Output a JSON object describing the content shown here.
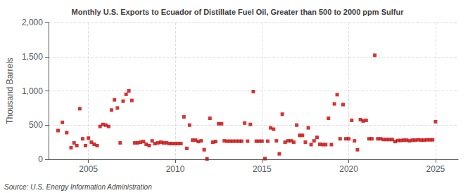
{
  "chart_data": {
    "type": "scatter",
    "title": "Monthly U.S. Exports to Ecuador of Distillate Fuel Oil, Greater than 500 to 2000 ppm Sulfur",
    "ylabel": "Thousand Barrels",
    "source": "Source: U.S. Energy Information Administration",
    "color": "#cc0000",
    "marker": "square",
    "grid": true,
    "xlim": [
      2002.7,
      2026.3
    ],
    "xticks": [
      2005,
      2010,
      2015,
      2020,
      2025
    ],
    "ylim": [
      0,
      2000
    ],
    "yticks": [
      0,
      500,
      {
        "value": 1000,
        "label": "1,000"
      },
      {
        "value": 1500,
        "label": "1,500"
      },
      {
        "value": 2000,
        "label": "2,000"
      }
    ],
    "x": [
      2003.25,
      2003.5,
      2003.75,
      2004.0,
      2004.17,
      2004.33,
      2004.5,
      2004.67,
      2004.83,
      2005.0,
      2005.17,
      2005.33,
      2005.5,
      2005.67,
      2005.83,
      2006.0,
      2006.17,
      2006.33,
      2006.5,
      2006.67,
      2006.83,
      2007.0,
      2007.17,
      2007.33,
      2007.5,
      2007.67,
      2007.83,
      2008.0,
      2008.17,
      2008.33,
      2008.5,
      2008.67,
      2008.83,
      2009.0,
      2009.17,
      2009.33,
      2009.5,
      2009.67,
      2009.83,
      2010.0,
      2010.17,
      2010.33,
      2010.5,
      2010.67,
      2010.83,
      2011.0,
      2011.17,
      2011.33,
      2011.5,
      2011.67,
      2011.83,
      2012.0,
      2012.17,
      2012.33,
      2012.5,
      2012.67,
      2012.83,
      2013.0,
      2013.17,
      2013.33,
      2013.5,
      2013.67,
      2013.83,
      2014.0,
      2014.17,
      2014.33,
      2014.5,
      2014.67,
      2014.83,
      2015.0,
      2015.17,
      2015.33,
      2015.5,
      2015.67,
      2015.83,
      2016.0,
      2016.17,
      2016.33,
      2016.5,
      2016.67,
      2016.83,
      2017.0,
      2017.17,
      2017.33,
      2017.5,
      2017.67,
      2017.83,
      2018.0,
      2018.17,
      2018.33,
      2018.5,
      2018.67,
      2018.83,
      2019.0,
      2019.17,
      2019.33,
      2019.5,
      2019.67,
      2019.83,
      2020.0,
      2020.17,
      2020.33,
      2020.5,
      2020.67,
      2020.83,
      2021.0,
      2021.17,
      2021.33,
      2021.5,
      2021.67,
      2021.83,
      2022.0,
      2022.17,
      2022.33,
      2022.5,
      2022.67,
      2022.83,
      2023.0,
      2023.17,
      2023.33,
      2023.5,
      2023.67,
      2023.83,
      2024.0,
      2024.17,
      2024.33,
      2024.5,
      2024.67,
      2024.83,
      2025.0
    ],
    "values": [
      420,
      540,
      390,
      170,
      240,
      200,
      740,
      300,
      200,
      310,
      250,
      220,
      200,
      480,
      510,
      500,
      480,
      720,
      870,
      750,
      240,
      850,
      950,
      1000,
      860,
      240,
      240,
      250,
      260,
      220,
      200,
      270,
      230,
      240,
      250,
      240,
      240,
      230,
      230,
      230,
      230,
      230,
      620,
      160,
      500,
      280,
      280,
      260,
      270,
      140,
      5,
      600,
      250,
      260,
      520,
      520,
      270,
      265,
      265,
      265,
      265,
      265,
      265,
      530,
      265,
      510,
      990,
      265,
      265,
      265,
      10,
      265,
      460,
      440,
      270,
      80,
      660,
      250,
      270,
      270,
      250,
      500,
      350,
      350,
      250,
      460,
      215,
      270,
      320,
      220,
      215,
      215,
      600,
      215,
      810,
      945,
      300,
      800,
      300,
      300,
      570,
      270,
      140,
      580,
      560,
      570,
      300,
      300,
      1520,
      300,
      300,
      290,
      290,
      290,
      290,
      260,
      275,
      275,
      280,
      280,
      270,
      280,
      280,
      285,
      280,
      280,
      285,
      285,
      285,
      550
    ]
  }
}
